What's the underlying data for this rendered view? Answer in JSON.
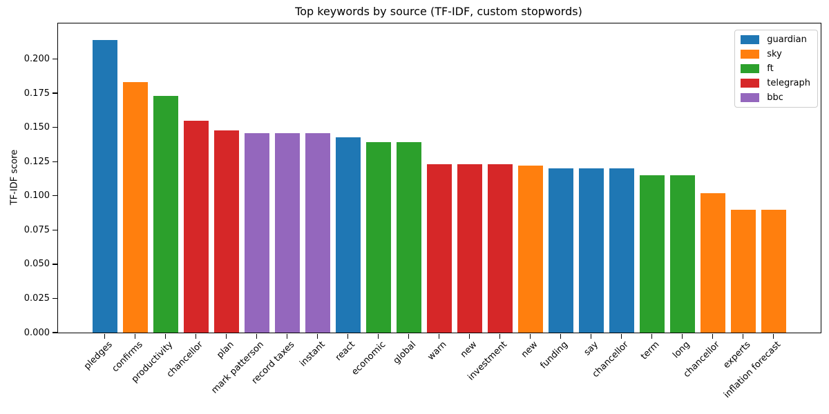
{
  "chart_data": {
    "type": "bar",
    "title": "Top keywords by source (TF-IDF, custom stopwords)",
    "xlabel": "",
    "ylabel": "TF-IDF score",
    "ylim": [
      0,
      0.226
    ],
    "yticks": [
      0,
      0.025,
      0.05,
      0.075,
      0.1,
      0.125,
      0.15,
      0.175,
      0.2
    ],
    "ytick_labels": [
      "0.000",
      "0.025",
      "0.050",
      "0.075",
      "0.100",
      "0.125",
      "0.150",
      "0.175",
      "0.200"
    ],
    "grid": false,
    "legend_position": "upper right",
    "legend": [
      {
        "label": "guardian",
        "color": "#1f77b4"
      },
      {
        "label": "sky",
        "color": "#ff7f0e"
      },
      {
        "label": "ft",
        "color": "#2ca02c"
      },
      {
        "label": "telegraph",
        "color": "#d62728"
      },
      {
        "label": "bbc",
        "color": "#9467bd"
      }
    ],
    "bars": [
      {
        "label": "pledges",
        "source": "guardian",
        "value": 0.214
      },
      {
        "label": "confirms",
        "source": "sky",
        "value": 0.183
      },
      {
        "label": "productivity",
        "source": "ft",
        "value": 0.173
      },
      {
        "label": "chancellor",
        "source": "telegraph",
        "value": 0.155
      },
      {
        "label": "plan",
        "source": "telegraph",
        "value": 0.148
      },
      {
        "label": "mark patterson",
        "source": "bbc",
        "value": 0.146
      },
      {
        "label": "record taxes",
        "source": "bbc",
        "value": 0.146
      },
      {
        "label": "instant",
        "source": "bbc",
        "value": 0.146
      },
      {
        "label": "react",
        "source": "guardian",
        "value": 0.143
      },
      {
        "label": "economic",
        "source": "ft",
        "value": 0.139
      },
      {
        "label": "global",
        "source": "ft",
        "value": 0.139
      },
      {
        "label": "warn",
        "source": "telegraph",
        "value": 0.123
      },
      {
        "label": "new",
        "source": "telegraph",
        "value": 0.123
      },
      {
        "label": "investment",
        "source": "telegraph",
        "value": 0.123
      },
      {
        "label": "new",
        "source": "sky",
        "value": 0.122
      },
      {
        "label": "funding",
        "source": "guardian",
        "value": 0.12
      },
      {
        "label": "say",
        "source": "guardian",
        "value": 0.12
      },
      {
        "label": "chancellor",
        "source": "guardian",
        "value": 0.12
      },
      {
        "label": "term",
        "source": "ft",
        "value": 0.115
      },
      {
        "label": "long",
        "source": "ft",
        "value": 0.115
      },
      {
        "label": "chancellor",
        "source": "sky",
        "value": 0.102
      },
      {
        "label": "experts",
        "source": "sky",
        "value": 0.09
      },
      {
        "label": "inflation forecast",
        "source": "sky",
        "value": 0.09
      }
    ]
  }
}
